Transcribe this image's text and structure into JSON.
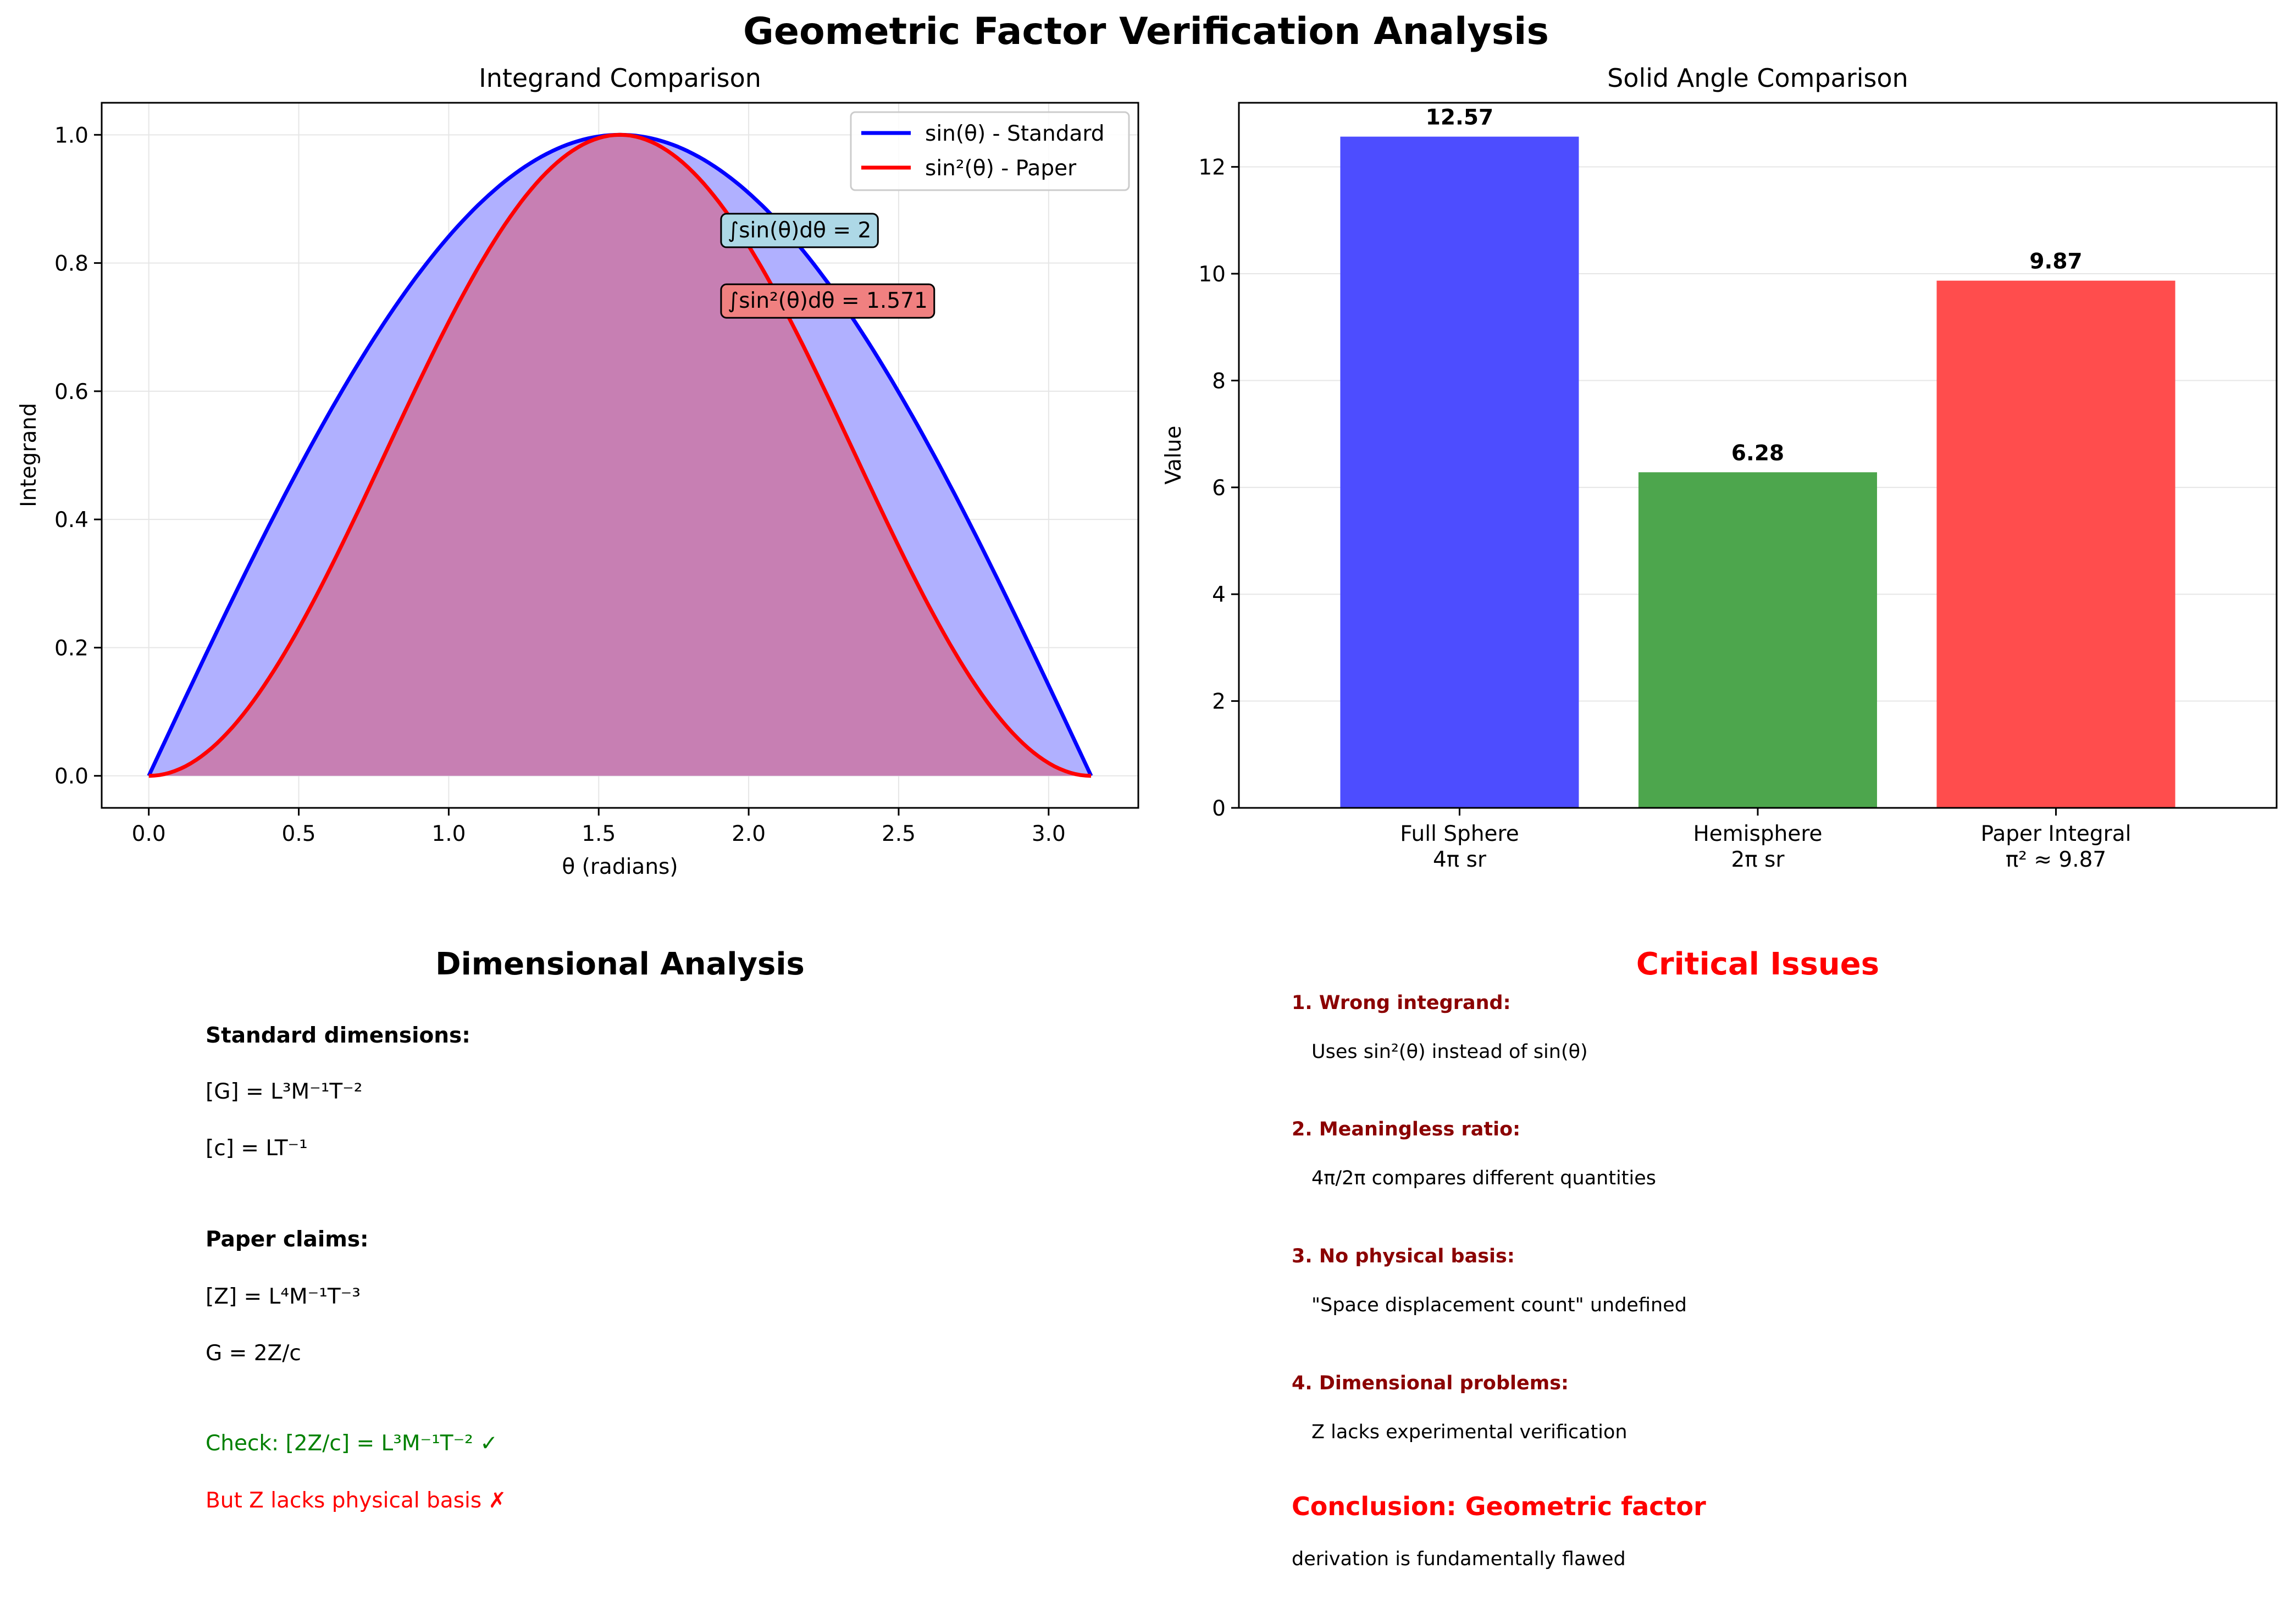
{
  "figure_title": "Geometric Factor Verification Analysis",
  "colors": {
    "blue": "#0000ff",
    "red": "#ff0000",
    "green": "#008000",
    "dark_red": "#8b0000",
    "bar_blue": "#4d4dff",
    "bar_green": "#4da64d",
    "bar_red": "#ff4d4d",
    "fill_blue": "#b0b0ff",
    "fill_overlap": "#c77fb3",
    "box_blue": "#add8e6",
    "box_red": "#f08080"
  },
  "chart_data": [
    {
      "type": "line",
      "title": "Integrand Comparison",
      "xlabel": "θ (radians)",
      "ylabel": "Integrand",
      "xlim": [
        -0.157,
        3.299
      ],
      "ylim": [
        -0.05,
        1.05
      ],
      "xticks": [
        "0.0",
        "0.5",
        "1.0",
        "1.5",
        "2.0",
        "2.5",
        "3.0"
      ],
      "yticks": [
        "0.0",
        "0.2",
        "0.4",
        "0.6",
        "0.8",
        "1.0"
      ],
      "grid": true,
      "legend": "top-right",
      "series": [
        {
          "name": "sin(θ) - Standard",
          "color": "#0000ff",
          "x": [
            0,
            0.2618,
            0.5236,
            0.7854,
            1.0472,
            1.309,
            1.5708,
            1.8326,
            2.0944,
            2.3562,
            2.618,
            2.8798,
            3.1416
          ],
          "y": [
            0,
            0.2588,
            0.5,
            0.7071,
            0.866,
            0.9659,
            1.0,
            0.9659,
            0.866,
            0.7071,
            0.5,
            0.2588,
            0
          ]
        },
        {
          "name": "sin²(θ) - Paper",
          "color": "#ff0000",
          "x": [
            0,
            0.2618,
            0.5236,
            0.7854,
            1.0472,
            1.309,
            1.5708,
            1.8326,
            2.0944,
            2.3562,
            2.618,
            2.8798,
            3.1416
          ],
          "y": [
            0,
            0.067,
            0.25,
            0.5,
            0.75,
            0.933,
            1.0,
            0.933,
            0.75,
            0.5,
            0.25,
            0.067,
            0
          ]
        }
      ],
      "annotations": [
        {
          "text": "∫sin(θ)dθ = 2",
          "x": 1.93,
          "y": 0.84,
          "box_color": "#add8e6"
        },
        {
          "text": "∫sin²(θ)dθ = 1.571",
          "x": 1.93,
          "y": 0.73,
          "box_color": "#f08080"
        }
      ]
    },
    {
      "type": "bar",
      "title": "Solid Angle Comparison",
      "ylabel": "Value",
      "ylim": [
        0,
        13.2
      ],
      "yticks": [
        "0",
        "2",
        "4",
        "6",
        "8",
        "10",
        "12"
      ],
      "grid": true,
      "categories": [
        [
          "Full Sphere",
          "4π sr"
        ],
        [
          "Hemisphere",
          "2π sr"
        ],
        [
          "Paper Integral",
          "π² ≈ 9.87"
        ]
      ],
      "values": [
        12.566,
        6.283,
        9.87
      ],
      "value_labels": [
        "12.57",
        "6.28",
        "9.87"
      ],
      "bar_colors": [
        "#4d4dff",
        "#4da64d",
        "#ff4d4d"
      ]
    }
  ],
  "dimensional": {
    "title": "Dimensional Analysis",
    "standard_head": "Standard dimensions:",
    "g_dim": "[G] = L³M⁻¹T⁻²",
    "c_dim": "[c] = LT⁻¹",
    "paper_head": "Paper claims:",
    "z_dim": "[Z] = L⁴M⁻¹T⁻³",
    "g_eq": "G = 2Z/c",
    "check": "Check: [2Z/c] = L³M⁻¹T⁻² ✓",
    "but": "But Z lacks physical basis ✗"
  },
  "issues": {
    "title": "Critical Issues",
    "items": [
      {
        "head": "1. Wrong integrand:",
        "body": "Uses sin²(θ) instead of sin(θ)"
      },
      {
        "head": "2. Meaningless ratio:",
        "body": "4π/2π compares different quantities"
      },
      {
        "head": "3. No physical basis:",
        "body": "\"Space displacement count\" undefined"
      },
      {
        "head": "4. Dimensional problems:",
        "body": "Z lacks experimental verification"
      }
    ],
    "conclusion_head": "Conclusion: Geometric factor",
    "conclusion_body": "derivation is fundamentally flawed"
  }
}
